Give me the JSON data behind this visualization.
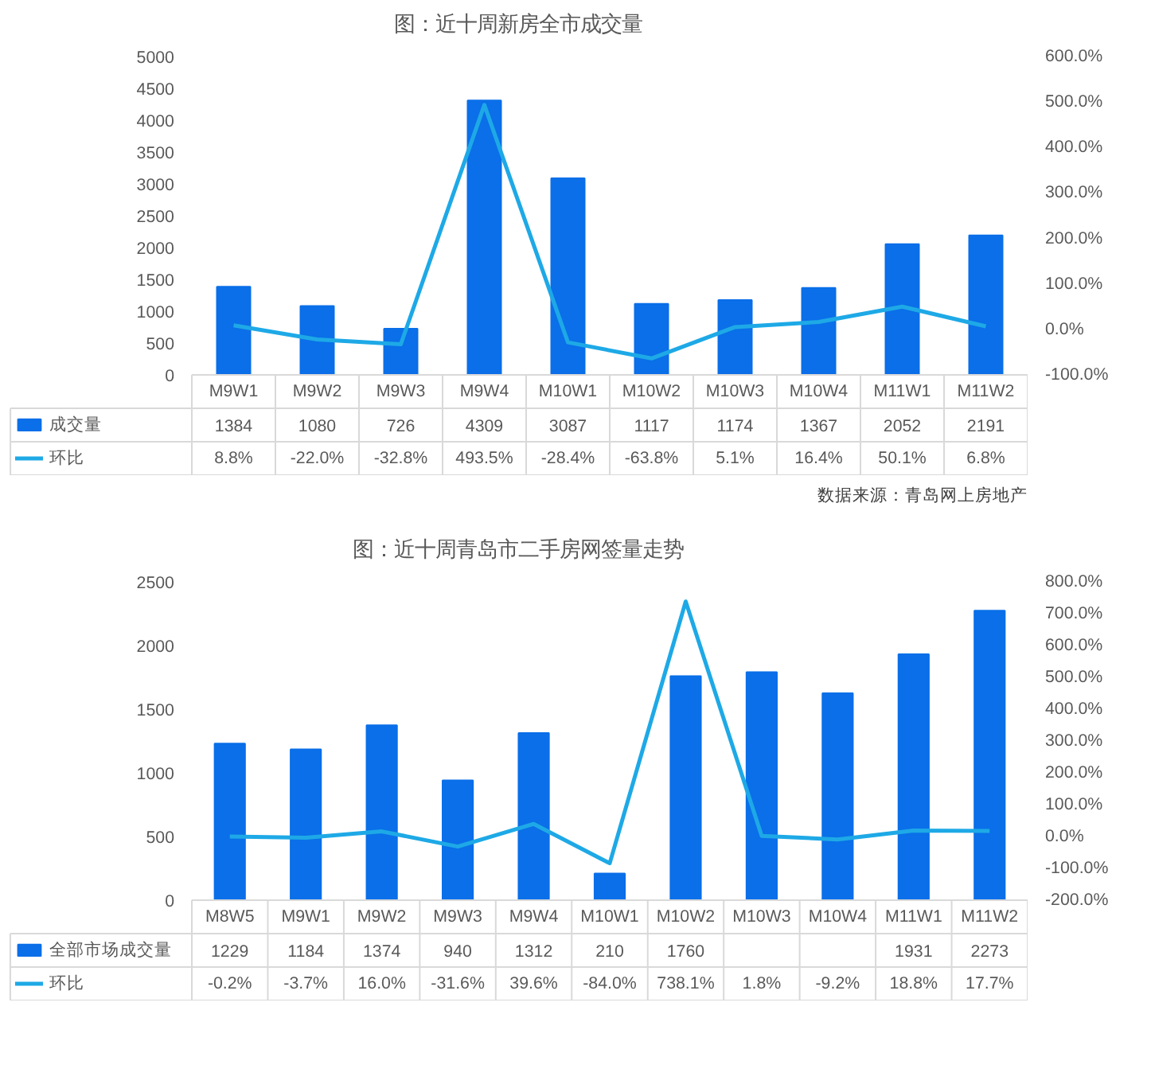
{
  "chart_data": [
    {
      "type": "bar",
      "title": "图：近十周新房全市成交量",
      "categories": [
        "M9W1",
        "M9W2",
        "M9W3",
        "M9W4",
        "M10W1",
        "M10W2",
        "M10W3",
        "M10W4",
        "M11W1",
        "M11W2"
      ],
      "series": [
        {
          "name": "成交量",
          "color": "#0a6fe8",
          "values": [
            1384,
            1080,
            726,
            4309,
            3087,
            1117,
            1174,
            1367,
            2052,
            2191
          ],
          "value_labels": [
            "1384",
            "1080",
            "726",
            "4309",
            "3087",
            "1117",
            "1174",
            "1367",
            "2052",
            "2191"
          ]
        },
        {
          "name": "环比",
          "type": "line",
          "axis": "y2",
          "color": "#1ea9e6",
          "values": [
            8.8,
            -22.0,
            -32.8,
            493.5,
            -28.4,
            -63.8,
            5.1,
            16.4,
            50.1,
            6.8
          ],
          "value_labels": [
            "8.8%",
            "-22.0%",
            "-32.8%",
            "493.5%",
            "-28.4%",
            "-63.8%",
            "5.1%",
            "16.4%",
            "50.1%",
            "6.8%"
          ]
        }
      ],
      "ylim": [
        0,
        5000
      ],
      "yticks": [
        0,
        500,
        1000,
        1500,
        2000,
        2500,
        3000,
        3500,
        4000,
        4500,
        5000
      ],
      "legend": "left",
      "y2lim": [
        -100,
        600
      ],
      "y2ticks": [
        {
          "value": -100,
          "label": "-100.0%"
        },
        {
          "value": 0,
          "label": "0.0%"
        },
        {
          "value": 100,
          "label": "100.0%"
        },
        {
          "value": 200,
          "label": "200.0%"
        },
        {
          "value": 300,
          "label": "300.0%"
        },
        {
          "value": 400,
          "label": "400.0%"
        },
        {
          "value": 500,
          "label": "500.0%"
        },
        {
          "value": 600,
          "label": "600.0%"
        }
      ],
      "annotations": [
        "数据来源：青岛网上房地产"
      ]
    },
    {
      "type": "bar",
      "title": "图：近十周青岛市二手房网签量走势",
      "categories": [
        "M8W5",
        "M9W1",
        "M9W2",
        "M9W3",
        "M9W4",
        "M10W1",
        "M10W2",
        "M10W3",
        "M10W4",
        "M11W1",
        "M11W2"
      ],
      "series": [
        {
          "name": "全部市场成交量",
          "color": "#0a6fe8",
          "values": [
            1229,
            1184,
            1374,
            940,
            1312,
            210,
            1760,
            1791,
            1625,
            1931,
            2273
          ],
          "value_labels": [
            "1229",
            "1184",
            "1374",
            "940",
            "1312",
            "210",
            "1760",
            null,
            null,
            "1931",
            "2273"
          ]
        },
        {
          "name": "环比",
          "type": "line",
          "axis": "y2",
          "color": "#1ea9e6",
          "values": [
            -0.2,
            -3.7,
            16.0,
            -31.6,
            39.6,
            -84.0,
            738.1,
            1.8,
            -9.2,
            18.8,
            17.7
          ],
          "value_labels": [
            "-0.2%",
            "-3.7%",
            "16.0%",
            "-31.6%",
            "39.6%",
            "-84.0%",
            "738.1%",
            "1.8%",
            "-9.2%",
            "18.8%",
            "17.7%"
          ]
        }
      ],
      "legend": "left",
      "ylim": [
        0,
        2500
      ],
      "yticks": [
        0,
        500,
        1000,
        1500,
        2000,
        2500
      ],
      "y2lim": [
        -200,
        800
      ],
      "y2ticks": [
        {
          "value": -200,
          "label": "-200.0%"
        },
        {
          "value": -100,
          "label": "-100.0%"
        },
        {
          "value": 0,
          "label": "0.0%"
        },
        {
          "value": 100,
          "label": "100.0%"
        },
        {
          "value": 200,
          "label": "200.0%"
        },
        {
          "value": 300,
          "label": "300.0%"
        },
        {
          "value": 400,
          "label": "400.0%"
        },
        {
          "value": 500,
          "label": "500.0%"
        },
        {
          "value": 600,
          "label": "600.0%"
        },
        {
          "value": 700,
          "label": "700.0%"
        },
        {
          "value": 800,
          "label": "800.0%"
        }
      ]
    }
  ]
}
